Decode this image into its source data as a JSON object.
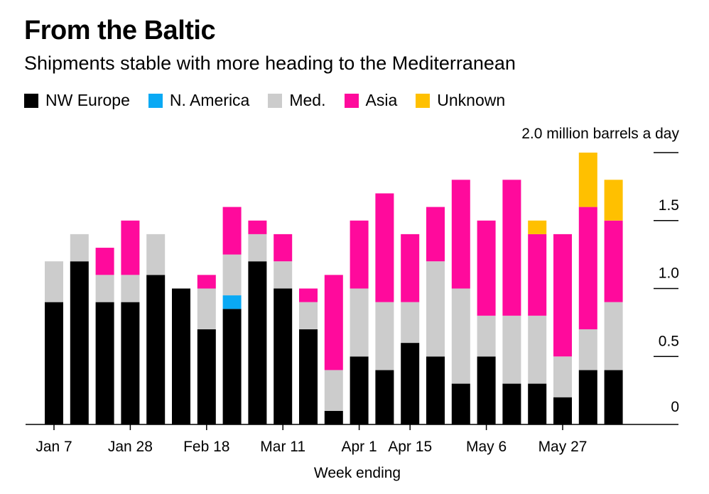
{
  "colors": {
    "NW Europe": "#000000",
    "N. America": "#0aa9f4",
    "Med.": "#cccccc",
    "Asia": "#ff0a9c",
    "Unknown": "#ffc000"
  },
  "chart_data": {
    "type": "bar",
    "stacked": true,
    "title": "From the Baltic",
    "subtitle": "Shipments stable with more heading to the Mediterranean",
    "xlabel": "Week ending",
    "ylabel": "",
    "y_unit_label": "2.0 million barrels a day",
    "ylim": [
      0,
      2.0
    ],
    "y_ticks": [
      {
        "value": 0,
        "label": "0"
      },
      {
        "value": 0.5,
        "label": "0.5"
      },
      {
        "value": 1.0,
        "label": "1.0"
      },
      {
        "value": 1.5,
        "label": "1.5"
      },
      {
        "value": 2.0,
        "label": ""
      }
    ],
    "x_tick_labels": [
      {
        "index": 0,
        "label": "Jan 7"
      },
      {
        "index": 3,
        "label": "Jan 28"
      },
      {
        "index": 6,
        "label": "Feb 18"
      },
      {
        "index": 9,
        "label": "Mar 11"
      },
      {
        "index": 12,
        "label": "Apr 1"
      },
      {
        "index": 14,
        "label": "Apr 15"
      },
      {
        "index": 17,
        "label": "May 6"
      },
      {
        "index": 20,
        "label": "May 27"
      }
    ],
    "legend_position": "top-left",
    "grid": false,
    "series": [
      {
        "name": "NW Europe",
        "values": [
          0.9,
          1.2,
          0.9,
          0.9,
          1.1,
          1.0,
          0.7,
          0.85,
          1.2,
          1.0,
          0.7,
          0.1,
          0.5,
          0.4,
          0.6,
          0.5,
          0.3,
          0.5,
          0.3,
          0.3,
          0.2,
          0.4,
          0.4
        ]
      },
      {
        "name": "N. America",
        "values": [
          0,
          0,
          0,
          0,
          0,
          0,
          0,
          0.1,
          0,
          0,
          0,
          0,
          0,
          0,
          0,
          0,
          0,
          0,
          0,
          0,
          0,
          0,
          0
        ]
      },
      {
        "name": "Med.",
        "values": [
          0.3,
          0.2,
          0.2,
          0.2,
          0.3,
          0,
          0.3,
          0.3,
          0.2,
          0.2,
          0.2,
          0.3,
          0.5,
          0.5,
          0.3,
          0.7,
          0.7,
          0.3,
          0.5,
          0.5,
          0.3,
          0.3,
          0.5
        ]
      },
      {
        "name": "Asia",
        "values": [
          0,
          0,
          0.2,
          0.4,
          0,
          0,
          0.1,
          0.35,
          0.1,
          0.2,
          0.1,
          0.7,
          0.5,
          0.8,
          0.5,
          0.4,
          0.8,
          0.7,
          1.0,
          0.6,
          0.9,
          0.9,
          0.6
        ]
      },
      {
        "name": "Unknown",
        "values": [
          0,
          0,
          0,
          0,
          0,
          0,
          0,
          0,
          0,
          0,
          0,
          0,
          0,
          0,
          0,
          0,
          0,
          0,
          0,
          0.1,
          0,
          0.4,
          0.3
        ]
      }
    ]
  }
}
